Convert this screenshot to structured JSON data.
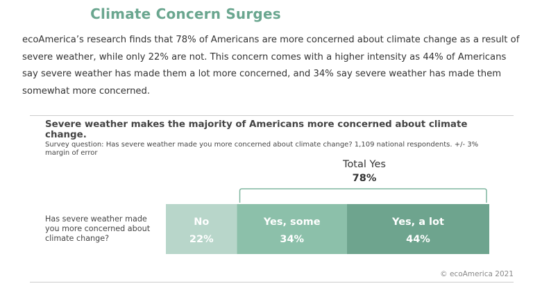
{
  "header": {
    "title": "Climate Concern Surges",
    "intro": "ecoAmerica’s research finds that 78% of Americans are more concerned about climate change as a result of severe weather, while only 22% are not. This concern comes with a higher intensity as 44% of Americans say severe weather has made them a lot more concerned, and 34% say severe weather has made them somewhat more concerned."
  },
  "chart_data": {
    "type": "bar",
    "orientation": "horizontal-stacked",
    "title": "Severe weather makes the majority of Americans more concerned about climate change.",
    "subtitle": "Survey question: Has severe weather made you more concerned about climate change? 1,109 national respondents. +/- 3% margin of error",
    "categories": [
      "Has severe weather made you more concerned about climate change?"
    ],
    "series": [
      {
        "name": "No",
        "values": [
          22
        ],
        "label": "22%",
        "color": "#b8d6ca"
      },
      {
        "name": "Yes, some",
        "values": [
          34
        ],
        "label": "34%",
        "color": "#8cc0aa"
      },
      {
        "name": "Yes, a lot",
        "values": [
          44
        ],
        "label": "44%",
        "color": "#6ea48e"
      }
    ],
    "bracket": {
      "label": "Total Yes",
      "value": "78%",
      "spans": [
        "Yes, some",
        "Yes, a lot"
      ]
    },
    "xlim": [
      0,
      100
    ],
    "grid": false,
    "legend": "none"
  },
  "footer": {
    "credit": "© ecoAmerica 2021"
  },
  "colors": {
    "title": "#6aa68f",
    "rule": "#cccccc",
    "bracket": "#7fb59f"
  }
}
